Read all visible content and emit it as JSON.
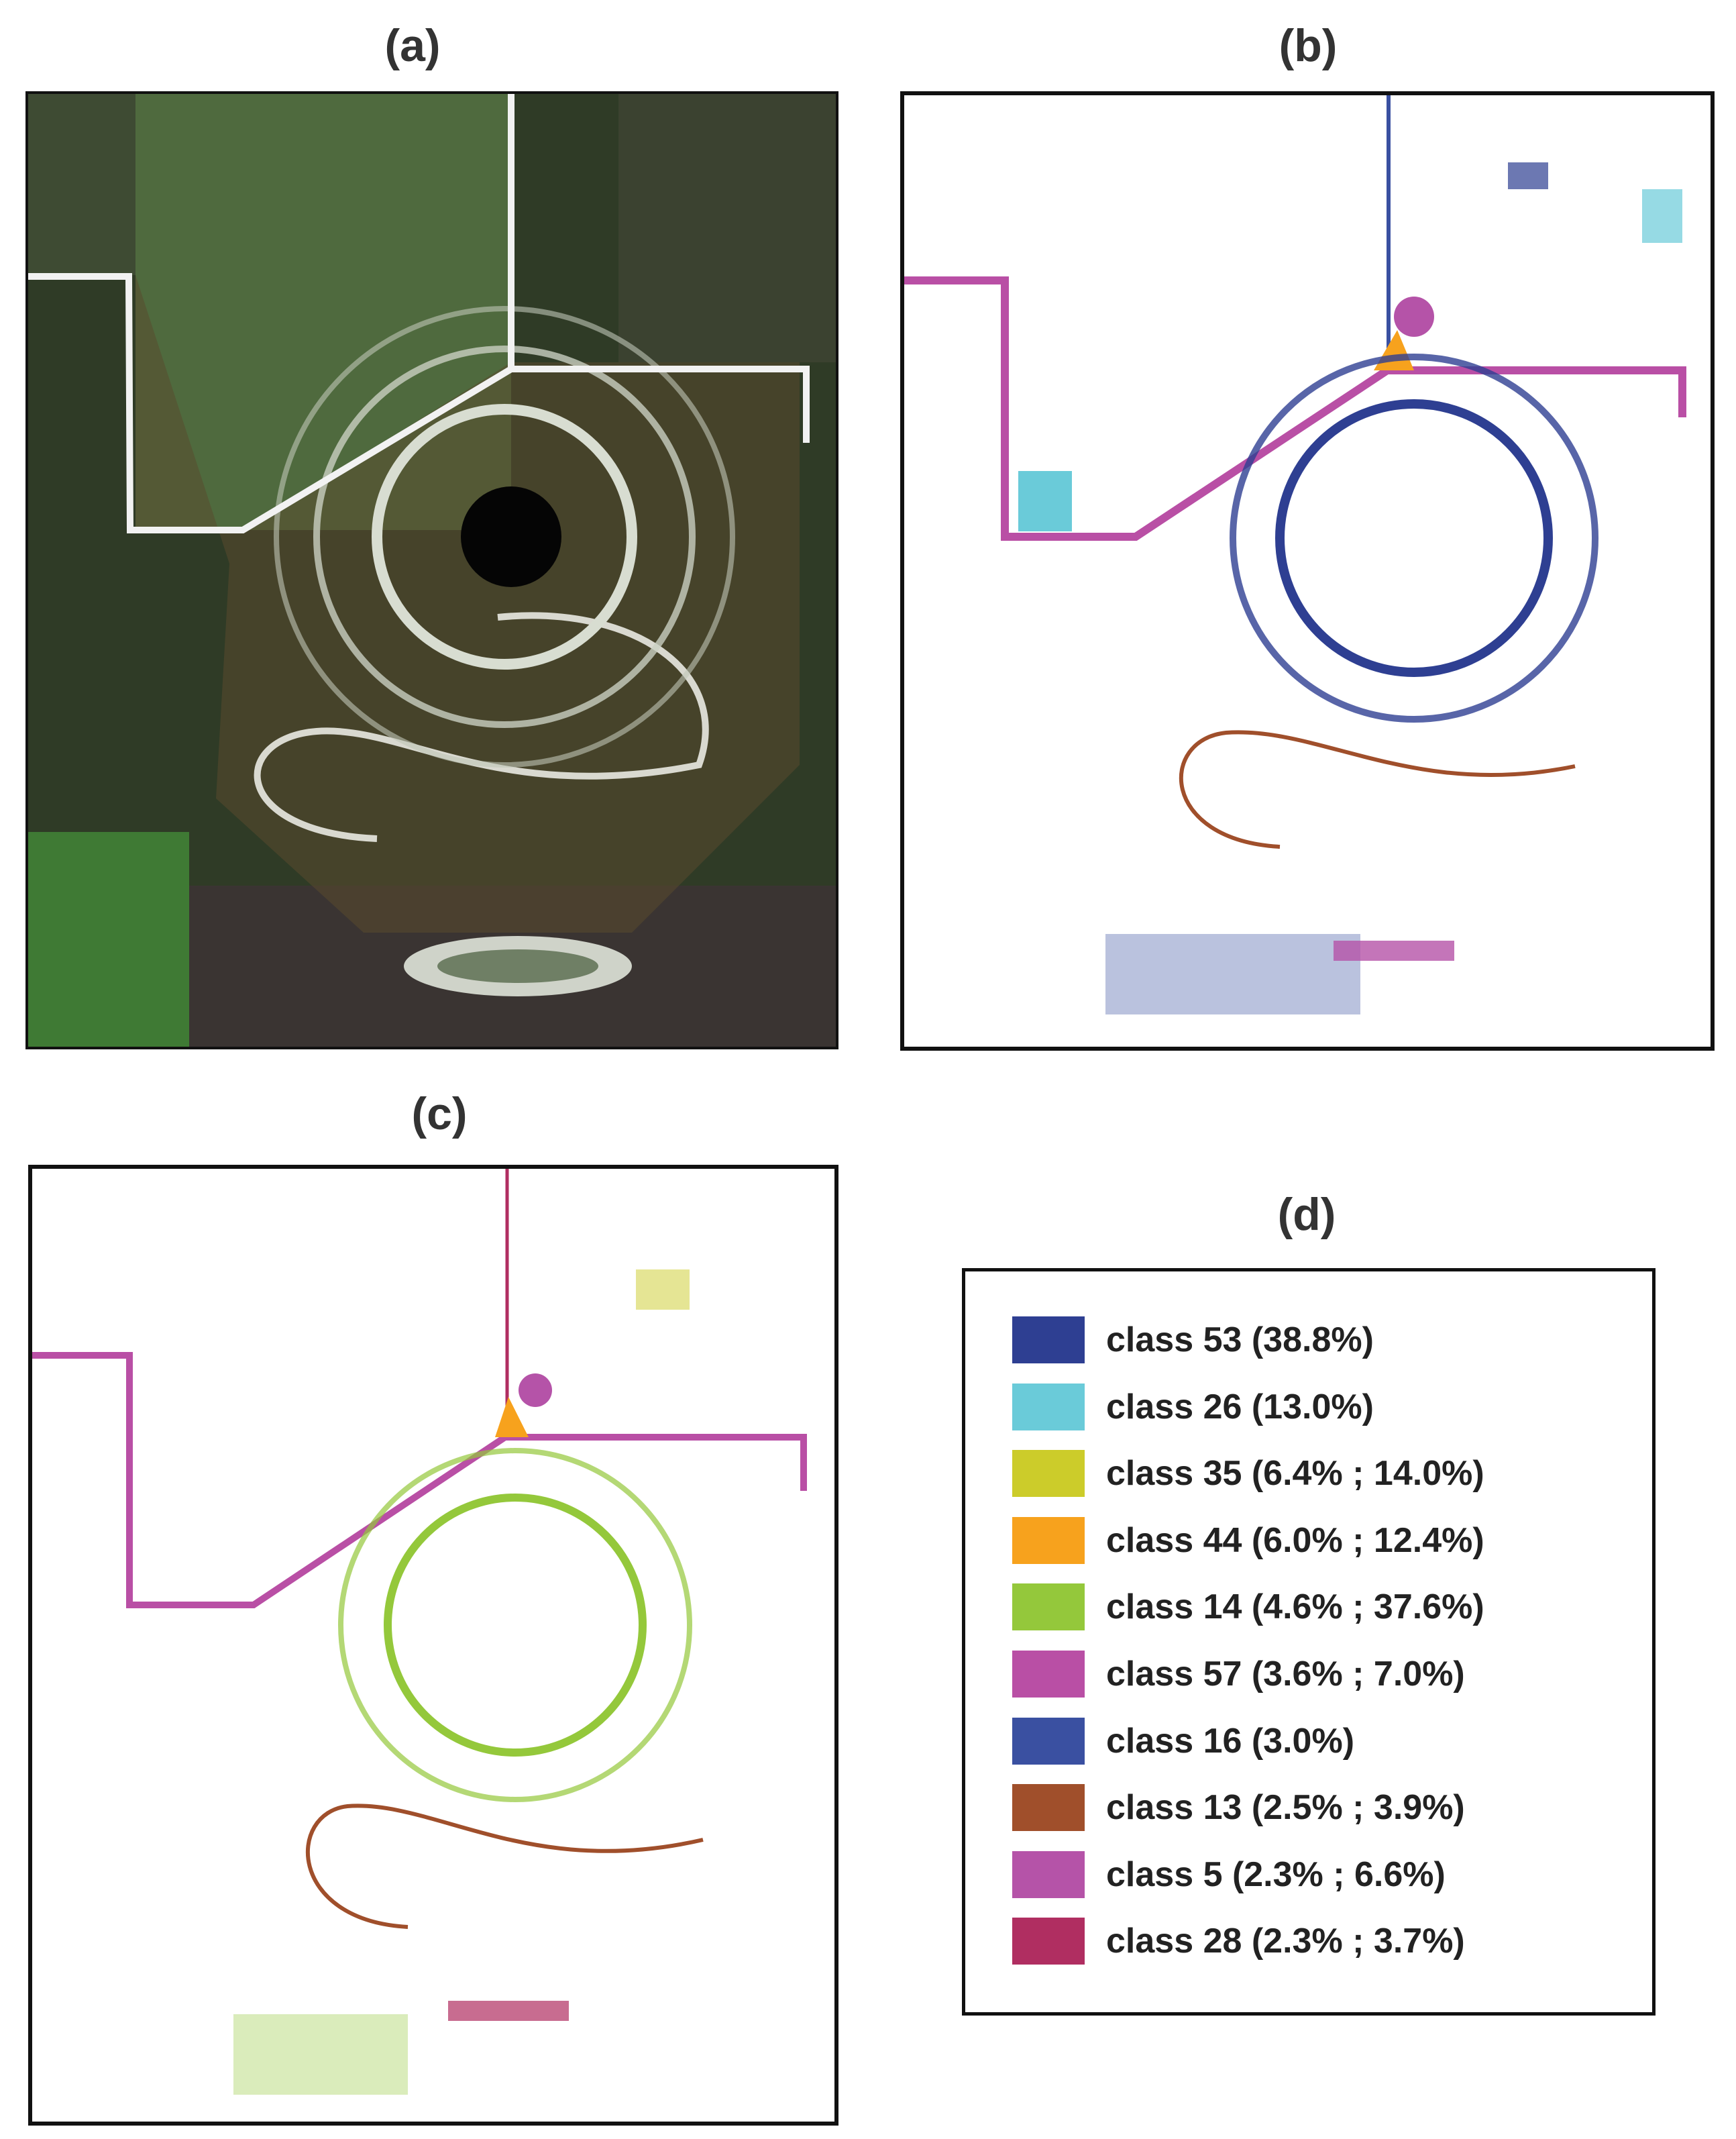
{
  "panels": {
    "a": {
      "label": "(a)"
    },
    "b": {
      "label": "(b)"
    },
    "c": {
      "label": "(c)"
    },
    "d": {
      "label": "(d)"
    }
  },
  "legend": {
    "items": [
      {
        "text": "class 53 (38.8%)",
        "color": "#2e3f92"
      },
      {
        "text": "class 26 (13.0%)",
        "color": "#6acbd9"
      },
      {
        "text": "class 35 (6.4% ; 14.0%)",
        "color": "#cccc2a"
      },
      {
        "text": "class 44 (6.0% ; 12.4%)",
        "color": "#f7a21d"
      },
      {
        "text": "class 14 (4.6% ; 37.6%)",
        "color": "#94c83b"
      },
      {
        "text": "class 57 (3.6% ; 7.0%)",
        "color": "#b94fa5"
      },
      {
        "text": "class 16 (3.0%)",
        "color": "#3a50a1"
      },
      {
        "text": "class 13 (2.5% ; 3.9%)",
        "color": "#a04f2b"
      },
      {
        "text": "class 5 (2.3% ; 6.6%)",
        "color": "#b553a8"
      },
      {
        "text": "class 28 (2.3% ; 3.7%)",
        "color": "#b02e61"
      }
    ]
  }
}
